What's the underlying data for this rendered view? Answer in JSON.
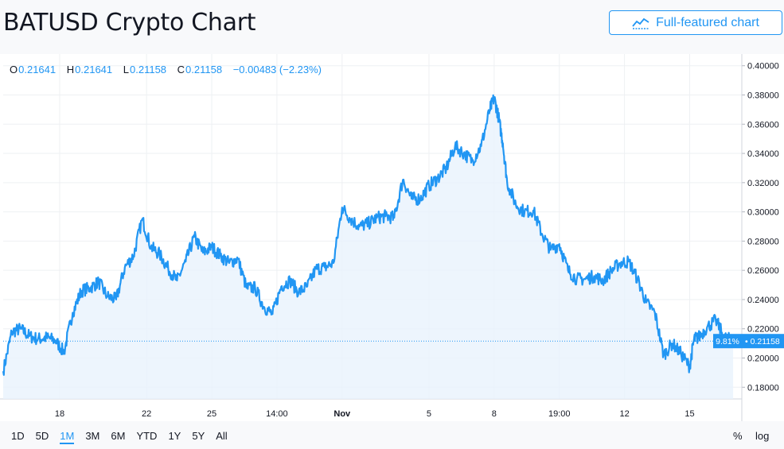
{
  "header": {
    "title": "BATUSD Crypto Chart",
    "full_chart_label": "Full-featured chart",
    "full_chart_icon": "chart-line-icon"
  },
  "ohlc": {
    "o_key": "O",
    "o": "0.21641",
    "h_key": "H",
    "h": "0.21641",
    "l_key": "L",
    "l": "0.21158",
    "c_key": "C",
    "c": "0.21158",
    "change": "−0.00483 (−2.23%)"
  },
  "price_badge": {
    "pct": "9.81%",
    "price": "0.21158"
  },
  "ranges": [
    "1D",
    "5D",
    "1M",
    "3M",
    "6M",
    "YTD",
    "1Y",
    "5Y",
    "All"
  ],
  "active_range": "1M",
  "scale": {
    "percent_label": "%",
    "log_label": "log"
  },
  "colors": {
    "line": "#2196f3",
    "fill": "#e9f3fd",
    "grid": "#eef0f3"
  },
  "chart_data": {
    "type": "area",
    "title": "BATUSD Crypto Chart",
    "ylim": [
      0.172,
      0.408
    ],
    "y_ticks": [
      "0.18000",
      "0.20000",
      "0.22000",
      "0.24000",
      "0.26000",
      "0.28000",
      "0.30000",
      "0.32000",
      "0.34000",
      "0.36000",
      "0.38000",
      "0.40000"
    ],
    "x_ticks": [
      "18",
      "22",
      "25",
      "14:00",
      "Nov",
      "5",
      "8",
      "19:00",
      "12",
      "15"
    ],
    "x_tick_positions": [
      0.6,
      4.6,
      7.6,
      10.6,
      13.6,
      17.6,
      20.6,
      23.6,
      26.6,
      29.6
    ],
    "x_range": [
      -2.0,
      32.0
    ],
    "last_price": 0.21158,
    "grid": true,
    "series": [
      {
        "x": [
          -2.0,
          -1.6,
          -1.2,
          -0.8,
          -0.4,
          0.0,
          0.4,
          0.8,
          1.2,
          1.6,
          2.0,
          2.4,
          2.8,
          3.2,
          3.6,
          4.0,
          4.4,
          4.8,
          5.2,
          5.6,
          6.0,
          6.4,
          6.8,
          7.2,
          7.6,
          8.0,
          8.4,
          8.8,
          9.2,
          9.6,
          10.0,
          10.4,
          10.8,
          11.2,
          11.6,
          12.0,
          12.4,
          12.8,
          13.2,
          13.6,
          14.0,
          14.4,
          14.8,
          15.2,
          15.6,
          16.0,
          16.4,
          16.8,
          17.2,
          17.6,
          18.0,
          18.4,
          18.8,
          19.2,
          19.6,
          20.0,
          20.4,
          20.6,
          20.8,
          21.0,
          21.2,
          21.6,
          22.0,
          22.4,
          22.8,
          23.2,
          23.6,
          24.0,
          24.4,
          24.8,
          25.2,
          25.6,
          26.0,
          26.4,
          26.8,
          27.2,
          27.6,
          28.0,
          28.4,
          28.8,
          29.2,
          29.6,
          29.8,
          30.0,
          30.4,
          30.8,
          31.2,
          31.6
        ],
        "values": [
          0.191,
          0.218,
          0.22,
          0.215,
          0.213,
          0.214,
          0.212,
          0.204,
          0.231,
          0.246,
          0.248,
          0.252,
          0.242,
          0.24,
          0.262,
          0.27,
          0.295,
          0.276,
          0.271,
          0.261,
          0.253,
          0.266,
          0.283,
          0.272,
          0.276,
          0.27,
          0.265,
          0.268,
          0.248,
          0.248,
          0.235,
          0.23,
          0.249,
          0.253,
          0.245,
          0.249,
          0.261,
          0.262,
          0.265,
          0.303,
          0.295,
          0.29,
          0.292,
          0.296,
          0.297,
          0.296,
          0.322,
          0.309,
          0.309,
          0.318,
          0.323,
          0.33,
          0.345,
          0.34,
          0.335,
          0.345,
          0.37,
          0.378,
          0.365,
          0.347,
          0.32,
          0.305,
          0.3,
          0.301,
          0.285,
          0.274,
          0.278,
          0.26,
          0.254,
          0.254,
          0.256,
          0.253,
          0.26,
          0.265,
          0.266,
          0.254,
          0.238,
          0.231,
          0.202,
          0.21,
          0.203,
          0.194,
          0.213,
          0.214,
          0.221,
          0.226,
          0.214,
          0.212
        ]
      }
    ]
  }
}
